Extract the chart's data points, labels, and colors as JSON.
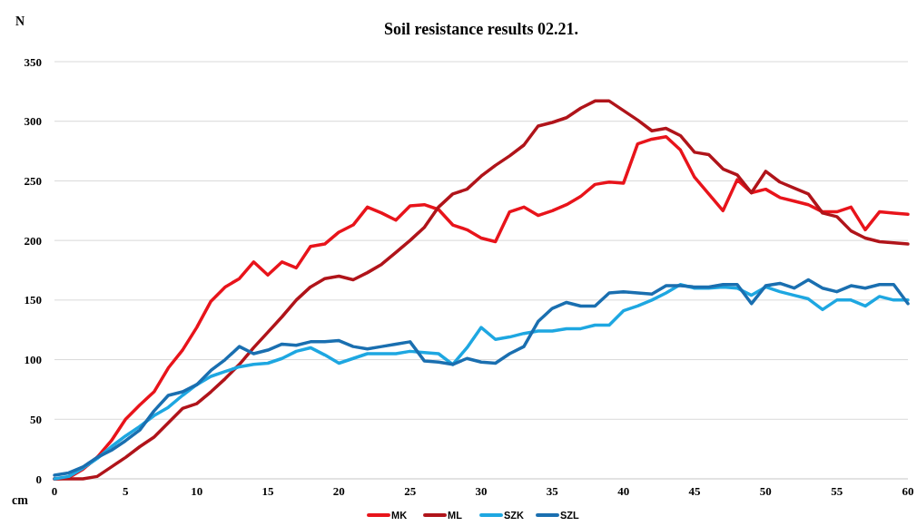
{
  "chart_data": {
    "type": "line",
    "title": "Soil resistance results 02.21.",
    "xlabel": "cm",
    "ylabel": "N",
    "x": [
      0,
      1,
      2,
      3,
      4,
      5,
      6,
      7,
      8,
      9,
      10,
      11,
      12,
      13,
      14,
      15,
      16,
      17,
      18,
      19,
      20,
      21,
      22,
      23,
      24,
      25,
      26,
      27,
      28,
      29,
      30,
      31,
      32,
      33,
      34,
      35,
      36,
      37,
      38,
      39,
      40,
      41,
      42,
      43,
      44,
      45,
      46,
      47,
      48,
      49,
      50,
      51,
      52,
      53,
      54,
      55,
      56,
      57,
      58,
      59,
      60
    ],
    "series": [
      {
        "name": "MK",
        "color": "#e8141b",
        "values": [
          0,
          1,
          8,
          18,
          32,
          50,
          62,
          73,
          93,
          108,
          127,
          149,
          161,
          168,
          182,
          171,
          182,
          177,
          195,
          197,
          207,
          213,
          228,
          223,
          217,
          229,
          230,
          226,
          213,
          209,
          202,
          199,
          224,
          228,
          221,
          225,
          230,
          237,
          247,
          249,
          248,
          281,
          285,
          287,
          276,
          253,
          239,
          225,
          251,
          240,
          243,
          236,
          233,
          230,
          224,
          224,
          228,
          209,
          224,
          223,
          222
        ]
      },
      {
        "name": "ML",
        "color": "#b0141a",
        "values": [
          0,
          0,
          0,
          2,
          10,
          18,
          27,
          35,
          47,
          59,
          63,
          73,
          84,
          96,
          110,
          123,
          136,
          150,
          161,
          168,
          170,
          167,
          173,
          180,
          190,
          200,
          211,
          228,
          239,
          243,
          254,
          263,
          271,
          280,
          296,
          299,
          303,
          311,
          317,
          317,
          309,
          301,
          292,
          294,
          288,
          274,
          272,
          260,
          255,
          240,
          258,
          249,
          244,
          239,
          223,
          220,
          208,
          202,
          199,
          198,
          197
        ]
      },
      {
        "name": "SZK",
        "color": "#1ea7e1",
        "values": [
          0,
          2,
          9,
          17,
          27,
          36,
          44,
          53,
          60,
          70,
          79,
          86,
          90,
          94,
          96,
          97,
          101,
          107,
          110,
          104,
          97,
          101,
          105,
          105,
          105,
          107,
          106,
          105,
          96,
          110,
          127,
          117,
          119,
          122,
          124,
          124,
          126,
          126,
          129,
          129,
          141,
          145,
          150,
          156,
          163,
          160,
          160,
          161,
          160,
          154,
          161,
          157,
          154,
          151,
          142,
          150,
          150,
          145,
          153,
          150,
          150
        ]
      },
      {
        "name": "SZL",
        "color": "#1a6fb0",
        "values": [
          3,
          5,
          10,
          18,
          24,
          32,
          41,
          57,
          70,
          73,
          79,
          91,
          100,
          111,
          105,
          108,
          113,
          112,
          115,
          115,
          116,
          111,
          109,
          111,
          113,
          115,
          99,
          98,
          96,
          101,
          98,
          97,
          105,
          111,
          132,
          143,
          148,
          145,
          145,
          156,
          157,
          156,
          155,
          162,
          162,
          161,
          161,
          163,
          163,
          147,
          162,
          164,
          160,
          167,
          160,
          157,
          162,
          160,
          163,
          163,
          147
        ]
      }
    ],
    "xlim": [
      0,
      60
    ],
    "xticks": [
      0,
      5,
      10,
      15,
      20,
      25,
      30,
      35,
      40,
      45,
      50,
      55,
      60
    ],
    "ylim": [
      0,
      350
    ],
    "yticks": [
      0,
      50,
      100,
      150,
      200,
      250,
      300,
      350
    ],
    "grid": "y",
    "legend": "bottom",
    "marker": "none",
    "line_style": "solid"
  }
}
